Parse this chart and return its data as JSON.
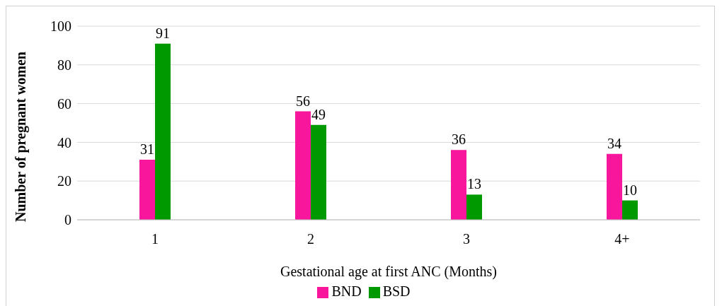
{
  "chart_data": {
    "type": "bar",
    "xlabel": "Gestational age at first ANC (Months)",
    "ylabel": "Number of pregnant women",
    "categories": [
      "1",
      "2",
      "3",
      "4+"
    ],
    "series": [
      {
        "name": "BND",
        "color": "#f7169c",
        "values": [
          31,
          56,
          36,
          34
        ]
      },
      {
        "name": "BSD",
        "color": "#009a00",
        "values": [
          91,
          49,
          13,
          10
        ]
      }
    ],
    "ylim": [
      0,
      100
    ],
    "yticks": [
      0,
      20,
      40,
      60,
      80,
      100
    ],
    "grid": "y",
    "legend": "bottom",
    "data_labels": true
  }
}
